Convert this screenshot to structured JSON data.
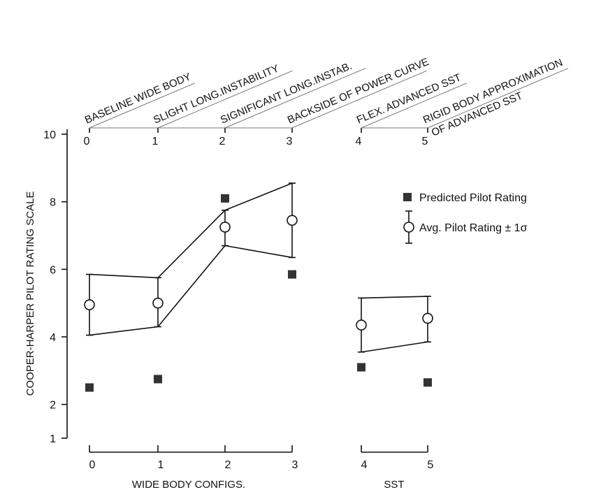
{
  "chart_data": {
    "type": "scatter",
    "ylabel": "COOPER-HARPER PILOT RATING SCALE",
    "y_ticks": [
      1,
      2,
      4,
      6,
      8,
      10
    ],
    "ylim": [
      1,
      10
    ],
    "x_ticks": [
      "0",
      "1",
      "2",
      "3",
      "4",
      "5"
    ],
    "groups": [
      {
        "label": "WIDE BODY CONFIGS.",
        "x": [
          0,
          1,
          2,
          3
        ]
      },
      {
        "label": "SST",
        "x": [
          4,
          5
        ]
      }
    ],
    "configurations": [
      {
        "x": 0,
        "label": "BASELINE WIDE BODY"
      },
      {
        "x": 1,
        "label": "SLIGHT LONG.INSTABILITY"
      },
      {
        "x": 2,
        "label": "SIGNIFICANT LONG.INSTAB."
      },
      {
        "x": 3,
        "label": "BACKSIDE OF POWER CURVE"
      },
      {
        "x": 4,
        "label": "FLEX. ADVANCED SST"
      },
      {
        "x": 5,
        "label": "RIGID BODY APPROXIMATION",
        "label2": "OF ADVANCED SST"
      }
    ],
    "series": [
      {
        "name": "Predicted Pilot Rating",
        "marker": "filled-square",
        "x": [
          0,
          1,
          2,
          3,
          4,
          5
        ],
        "values": [
          2.5,
          2.75,
          8.1,
          5.85,
          3.1,
          2.65
        ]
      },
      {
        "name": "Avg. Pilot Rating ± 1σ",
        "marker": "open-circle",
        "x": [
          0,
          1,
          2,
          3,
          4,
          5
        ],
        "values": [
          4.95,
          5.0,
          7.25,
          7.45,
          4.35,
          4.55
        ],
        "upper": [
          5.85,
          5.75,
          7.75,
          8.55,
          5.15,
          5.2
        ],
        "lower": [
          4.05,
          4.3,
          6.7,
          6.35,
          3.55,
          3.85
        ]
      }
    ],
    "legend": {
      "placement": "right",
      "predicted": "Predicted Pilot Rating",
      "average": "Avg. Pilot Rating ± 1σ"
    },
    "grid": false
  }
}
